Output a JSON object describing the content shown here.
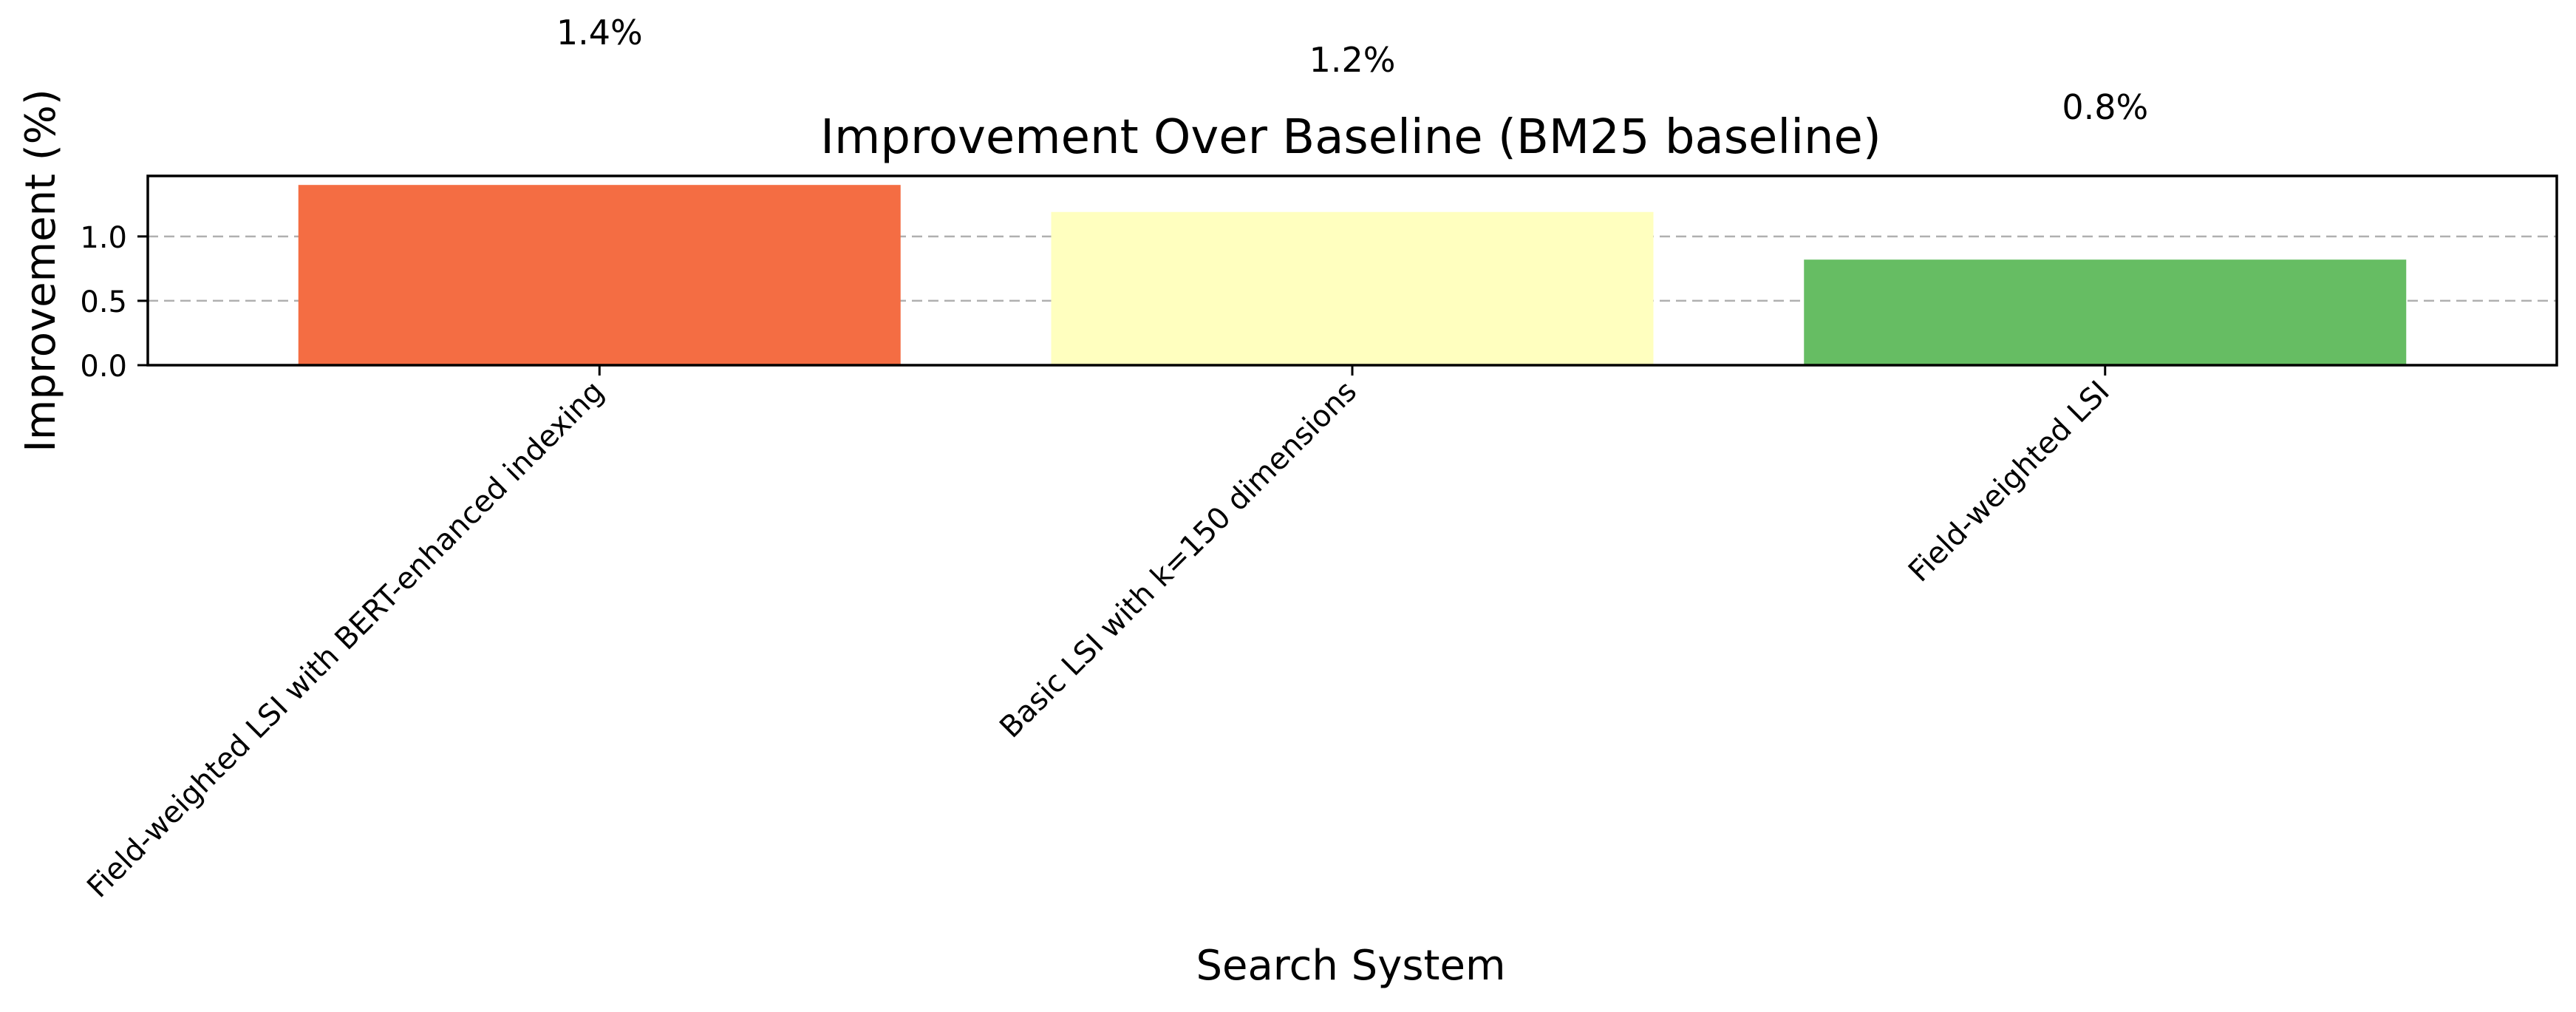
{
  "chart_data": {
    "type": "bar",
    "title": "Improvement Over Baseline (BM25 baseline)",
    "xlabel": "Search System",
    "ylabel": "Improvement (%)",
    "categories": [
      "Field-weighted LSI with BERT-enhanced indexing",
      "Basic LSI with k=150 dimensions",
      "Field-weighted LSI"
    ],
    "values": [
      1.4,
      1.2,
      0.8
    ],
    "bar_values": [
      1.4,
      1.19,
      0.82
    ],
    "data_labels": [
      "1.4%",
      "1.2%",
      "0.8%"
    ],
    "bar_colors": [
      "#f46d43",
      "#ffffbf",
      "#66bd63"
    ],
    "yticks": [
      0.0,
      0.5,
      1.0
    ],
    "ytick_labels": [
      "0.0",
      "0.5",
      "1.0"
    ],
    "ylim": [
      0,
      1.47
    ],
    "grid": "y-dashed",
    "legend": "none"
  }
}
